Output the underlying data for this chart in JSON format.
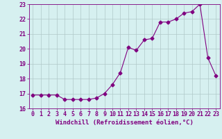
{
  "x": [
    0,
    1,
    2,
    3,
    4,
    5,
    6,
    7,
    8,
    9,
    10,
    11,
    12,
    13,
    14,
    15,
    16,
    17,
    18,
    19,
    20,
    21,
    22,
    23
  ],
  "y": [
    16.9,
    16.9,
    16.9,
    16.9,
    16.6,
    16.6,
    16.6,
    16.6,
    16.7,
    17.0,
    17.6,
    18.4,
    20.1,
    19.9,
    20.6,
    20.7,
    21.8,
    21.8,
    22.0,
    22.4,
    22.5,
    23.0,
    19.4,
    18.2
  ],
  "line_color": "#800080",
  "marker": "D",
  "marker_size": 2.5,
  "xlim": [
    -0.5,
    23.5
  ],
  "ylim": [
    16,
    23
  ],
  "yticks": [
    16,
    17,
    18,
    19,
    20,
    21,
    22,
    23
  ],
  "xticks": [
    0,
    1,
    2,
    3,
    4,
    5,
    6,
    7,
    8,
    9,
    10,
    11,
    12,
    13,
    14,
    15,
    16,
    17,
    18,
    19,
    20,
    21,
    22,
    23
  ],
  "xlabel": "Windchill (Refroidissement éolien,°C)",
  "background_color": "#d6f0f0",
  "grid_color": "#b0c8c8",
  "tick_color": "#800080",
  "label_color": "#800080",
  "font_size_label": 6.5,
  "font_size_tick": 6.0
}
